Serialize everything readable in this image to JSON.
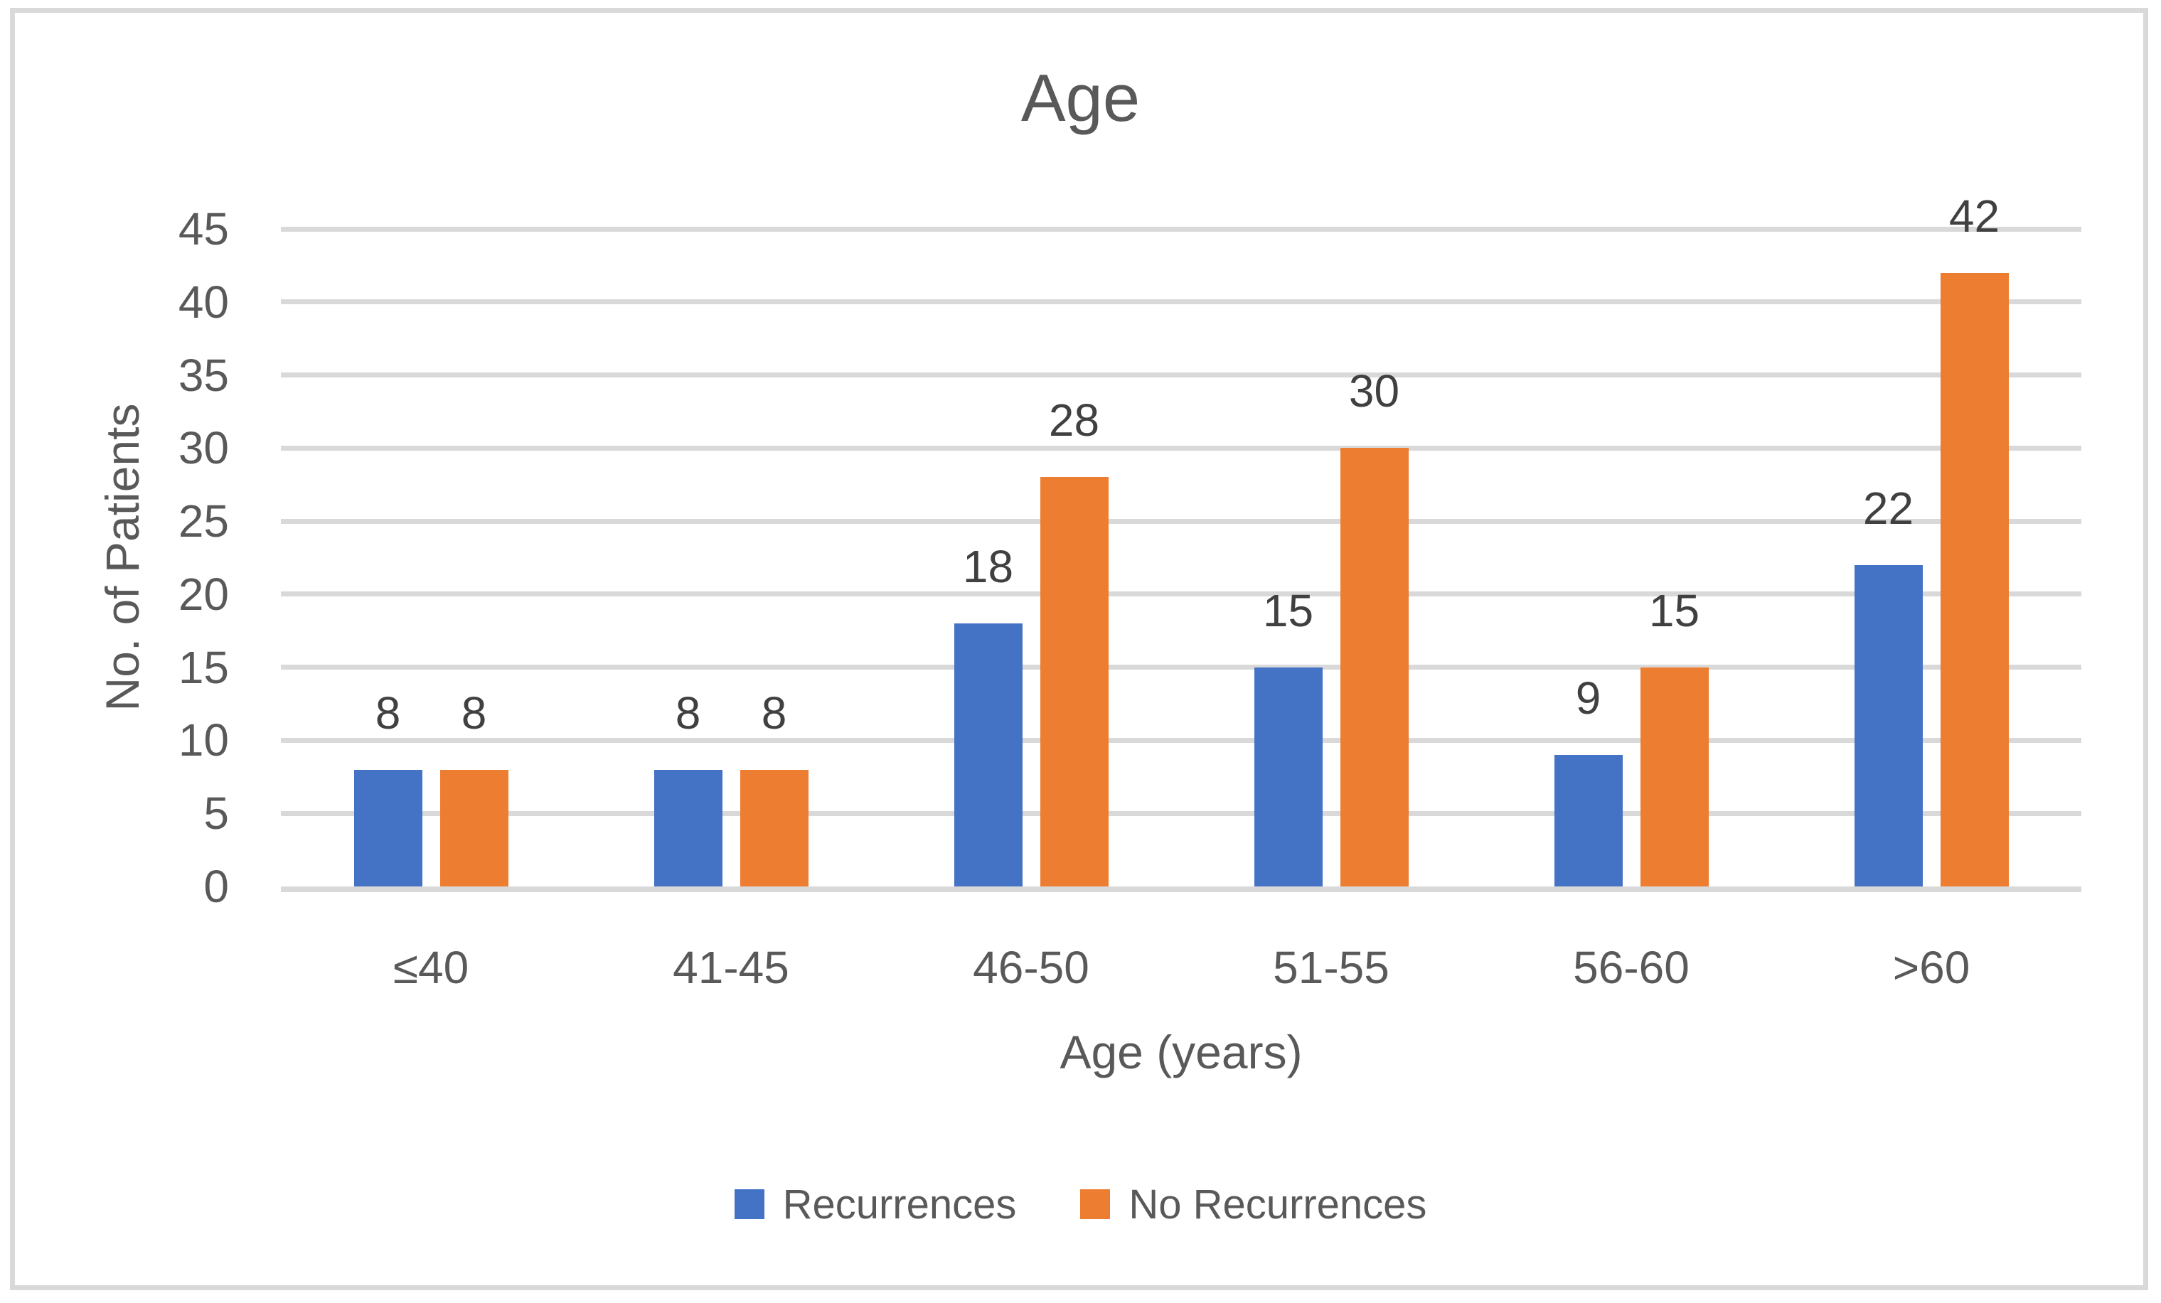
{
  "chart_data": {
    "type": "bar",
    "title": "Age",
    "categories": [
      "≤40",
      "41-45",
      "46-50",
      "51-55",
      "56-60",
      ">60"
    ],
    "series": [
      {
        "name": "Recurrences",
        "color": "#4472C4",
        "values": [
          8,
          8,
          18,
          15,
          9,
          22
        ]
      },
      {
        "name": "No Recurrences",
        "color": "#ED7D31",
        "values": [
          8,
          8,
          28,
          30,
          15,
          42
        ]
      }
    ],
    "xlabel": "Age (years)",
    "ylabel": "No. of Patients",
    "ylim": [
      0,
      45
    ],
    "ytick_step": 5,
    "yticks": [
      "0",
      "5",
      "10",
      "15",
      "20",
      "25",
      "30",
      "35",
      "40",
      "45"
    ],
    "grid": true,
    "legend_position": "bottom",
    "colors": {
      "gridline": "#D9D9D9",
      "frame": "#D9D9D9",
      "axis_text": "#595959",
      "title_text": "#595959",
      "data_label": "#404040"
    }
  }
}
